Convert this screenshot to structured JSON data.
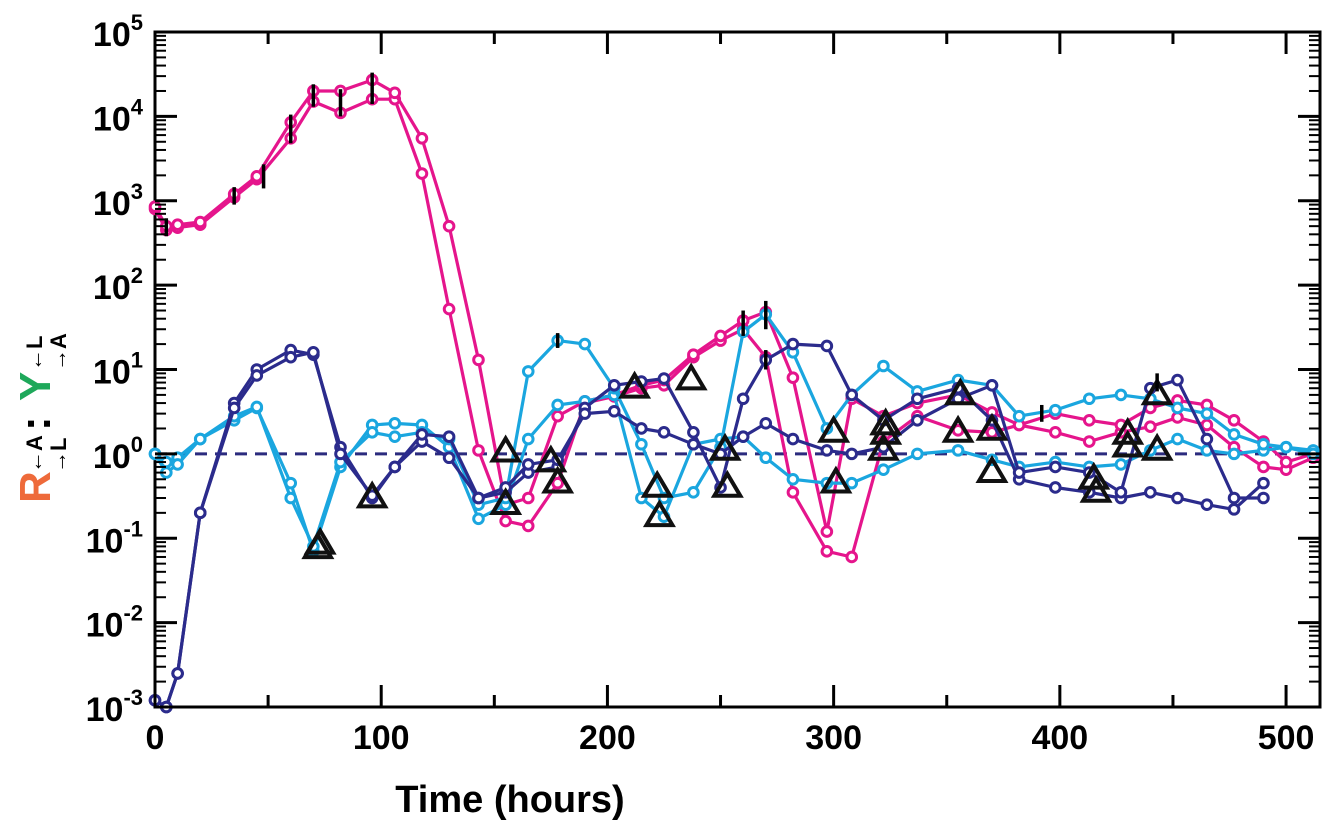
{
  "chart_data": {
    "type": "line",
    "xlabel": "Time (hours)",
    "ylabel": {
      "parts": [
        {
          "text": "R",
          "color": "#ee6a3a",
          "sub_top": "←A",
          "sub_bottom": "→L"
        },
        {
          "text": ":",
          "color": "#000000"
        },
        {
          "text": "Y",
          "color": "#1ea85a",
          "sub_top": "←L",
          "sub_bottom": "→A"
        }
      ]
    },
    "xlim": [
      0,
      515
    ],
    "ylim": [
      0.001,
      100000
    ],
    "yscale": "log",
    "xticks": [
      0,
      100,
      200,
      300,
      400,
      500
    ],
    "xtick_labels": [
      "0",
      "100",
      "200",
      "300",
      "400",
      "500"
    ],
    "yticks": [
      {
        "value": 0.001,
        "base": "10",
        "exp": "-3"
      },
      {
        "value": 0.01,
        "base": "10",
        "exp": "-2"
      },
      {
        "value": 0.1,
        "base": "10",
        "exp": "-1"
      },
      {
        "value": 1,
        "base": "10",
        "exp": "0"
      },
      {
        "value": 10,
        "base": "10",
        "exp": "1"
      },
      {
        "value": 100,
        "base": "10",
        "exp": "2"
      },
      {
        "value": 1000,
        "base": "10",
        "exp": "3"
      },
      {
        "value": 10000,
        "base": "10",
        "exp": "4"
      },
      {
        "value": 100000,
        "base": "10",
        "exp": "5"
      }
    ],
    "reference_line": {
      "y": 1,
      "style": "dashed",
      "color": "#2b2b7e"
    },
    "series": [
      {
        "color": "#e5158c",
        "x": [
          0,
          5,
          10,
          20,
          35,
          45,
          60,
          70,
          82,
          96,
          106,
          118,
          130,
          143,
          155,
          165,
          178,
          190,
          203,
          215,
          225,
          238,
          250,
          260,
          270,
          282,
          297,
          308,
          322,
          337,
          355,
          370,
          382,
          398,
          413,
          427,
          440,
          452,
          465,
          477,
          490,
          500,
          512
        ],
        "y": [
          800,
          450,
          480,
          520,
          1100,
          1800,
          5500,
          15000,
          11000,
          16000,
          16000,
          2100,
          52,
          1.1,
          0.16,
          0.14,
          0.45,
          4,
          4.8,
          6,
          6.5,
          14,
          22,
          30,
          14,
          0.35,
          0.07,
          0.06,
          1.4,
          2.8,
          1.9,
          1.8,
          2.2,
          1.8,
          1.4,
          1.8,
          2.1,
          2.7,
          2.2,
          1.2,
          0.7,
          0.65,
          0.9
        ]
      },
      {
        "color": "#e5158c",
        "x": [
          0,
          5,
          10,
          20,
          35,
          45,
          60,
          70,
          82,
          96,
          106,
          118,
          130,
          143,
          155,
          165,
          178,
          190,
          203,
          215,
          225,
          238,
          250,
          260,
          270,
          282,
          297,
          308,
          322,
          337,
          355,
          370,
          382,
          398,
          413,
          427,
          440,
          452,
          465,
          477,
          490,
          500,
          512
        ],
        "y": [
          850,
          500,
          520,
          560,
          1200,
          1950,
          8500,
          20000,
          20000,
          27000,
          19000,
          5500,
          500,
          13,
          0.25,
          0.3,
          2.8,
          4.2,
          5,
          6.5,
          7.5,
          15,
          25,
          38,
          48,
          8,
          0.12,
          4.5,
          2.8,
          4,
          5,
          3.1,
          2.2,
          3,
          2.5,
          2.2,
          3.5,
          4.3,
          3.8,
          2.5,
          1.4,
          0.8,
          1.0
        ]
      },
      {
        "color": "#1aa6df",
        "x": [
          0,
          5,
          10,
          20,
          35,
          45,
          60,
          70,
          82,
          96,
          106,
          118,
          130,
          143,
          155,
          165,
          178,
          190,
          203,
          215,
          225,
          238,
          250,
          260,
          270,
          282,
          297,
          308,
          322,
          337,
          355,
          370,
          382,
          398,
          413,
          427,
          440,
          452,
          465,
          477,
          490,
          500,
          512
        ],
        "y": [
          1,
          0.8,
          0.9,
          1.5,
          2.5,
          3.5,
          0.45,
          0.07,
          0.7,
          2.2,
          2.3,
          2.2,
          1.2,
          0.17,
          0.25,
          1.5,
          3.8,
          4.2,
          5,
          0.3,
          0.18,
          1.3,
          1.5,
          1.6,
          0.9,
          0.5,
          0.45,
          0.45,
          0.65,
          1,
          1.1,
          0.85,
          0.7,
          0.8,
          0.7,
          0.75,
          1.1,
          1.5,
          1.1,
          1.0,
          1.1,
          1.2,
          1.1
        ]
      },
      {
        "color": "#1aa6df",
        "x": [
          0,
          5,
          10,
          20,
          35,
          45,
          60,
          70,
          82,
          96,
          106,
          118,
          130,
          143,
          155,
          165,
          178,
          190,
          203,
          215,
          225,
          238,
          250,
          260,
          270,
          282,
          297,
          308,
          322,
          337,
          355,
          370,
          382,
          398,
          413,
          427,
          440,
          452,
          465,
          477,
          490,
          500,
          512
        ],
        "y": [
          1.0,
          0.6,
          0.75,
          1.5,
          2.8,
          3.6,
          0.3,
          0.08,
          0.8,
          1.8,
          1.6,
          1.8,
          1.5,
          0.25,
          0.3,
          9.5,
          22,
          20,
          6,
          1.3,
          0.3,
          0.35,
          1.2,
          28,
          45,
          16,
          2,
          5,
          11,
          5.5,
          7.5,
          6.5,
          2.8,
          3.3,
          4.5,
          5,
          4.5,
          3.5,
          3,
          1.7,
          1.3,
          1.2,
          1.0
        ]
      },
      {
        "color": "#2b2b8c",
        "x": [
          0,
          5,
          10,
          20,
          35,
          45,
          60,
          70,
          82,
          96,
          106,
          118,
          130,
          143,
          155,
          165,
          178,
          190,
          203,
          215,
          225,
          238,
          250,
          260,
          270,
          282,
          297,
          308,
          322,
          337,
          355,
          370,
          382,
          398,
          413,
          427,
          440,
          452,
          465,
          477,
          490
        ],
        "y": [
          0.0012,
          0.001,
          0.0025,
          0.2,
          4,
          10,
          17,
          15,
          1.2,
          0.3,
          0.7,
          1.4,
          0.9,
          0.3,
          0.35,
          0.6,
          0.7,
          3.5,
          6.5,
          7.2,
          7.8,
          1.8,
          0.4,
          4.5,
          13,
          20,
          19,
          5,
          2.5,
          4.5,
          6,
          2.5,
          0.5,
          0.4,
          0.35,
          0.3,
          0.35,
          0.3,
          0.25,
          0.22,
          0.45
        ]
      },
      {
        "color": "#2b2b8c",
        "x": [
          0,
          5,
          10,
          20,
          35,
          45,
          60,
          70,
          82,
          96,
          106,
          118,
          130,
          143,
          155,
          165,
          178,
          190,
          203,
          215,
          225,
          238,
          250,
          260,
          270,
          282,
          297,
          308,
          322,
          337,
          355,
          370,
          382,
          398,
          413,
          427,
          440,
          452,
          465,
          477,
          490
        ],
        "y": [
          0.0012,
          0.001,
          0.0025,
          0.2,
          3.5,
          8.5,
          14,
          16,
          1.0,
          0.32,
          0.7,
          1.7,
          1.6,
          0.3,
          0.4,
          0.75,
          0.85,
          3.0,
          3.2,
          2.0,
          1.8,
          1.3,
          1.0,
          1.6,
          2.3,
          1.5,
          1.1,
          1.0,
          1.2,
          2.5,
          4.5,
          6.5,
          0.6,
          0.7,
          0.6,
          0.35,
          6,
          7.5,
          1.5,
          0.3,
          0.3
        ]
      }
    ],
    "triangle_markers": [
      {
        "x": 72,
        "y": 0.075
      },
      {
        "x": 73,
        "y": 0.085
      },
      {
        "x": 96,
        "y": 0.3
      },
      {
        "x": 155,
        "y": 1.05
      },
      {
        "x": 155,
        "y": 0.25
      },
      {
        "x": 175,
        "y": 0.8
      },
      {
        "x": 178,
        "y": 0.45
      },
      {
        "x": 212,
        "y": 6
      },
      {
        "x": 222,
        "y": 0.4
      },
      {
        "x": 223,
        "y": 0.18
      },
      {
        "x": 237,
        "y": 7.5
      },
      {
        "x": 252,
        "y": 1.1
      },
      {
        "x": 253,
        "y": 0.4
      },
      {
        "x": 300,
        "y": 1.8
      },
      {
        "x": 301,
        "y": 0.45
      },
      {
        "x": 322,
        "y": 1.1
      },
      {
        "x": 323,
        "y": 1.7
      },
      {
        "x": 323,
        "y": 2.2
      },
      {
        "x": 355,
        "y": 1.8
      },
      {
        "x": 356,
        "y": 5
      },
      {
        "x": 370,
        "y": 1.9
      },
      {
        "x": 370,
        "y": 0.6
      },
      {
        "x": 415,
        "y": 0.5
      },
      {
        "x": 416,
        "y": 0.35
      },
      {
        "x": 430,
        "y": 1.2
      },
      {
        "x": 430,
        "y": 1.7
      },
      {
        "x": 443,
        "y": 1.1
      },
      {
        "x": 443,
        "y": 5
      }
    ],
    "error_bars": [
      {
        "x": 5,
        "y": 480,
        "lo": 380,
        "hi": 620
      },
      {
        "x": 35,
        "y": 1150,
        "lo": 900,
        "hi": 1450
      },
      {
        "x": 48,
        "y": 1900,
        "lo": 1400,
        "hi": 2700
      },
      {
        "x": 60,
        "y": 7000,
        "lo": 4800,
        "hi": 10500
      },
      {
        "x": 70,
        "y": 18000,
        "lo": 13000,
        "hi": 24000
      },
      {
        "x": 82,
        "y": 15000,
        "lo": 10000,
        "hi": 21000
      },
      {
        "x": 96,
        "y": 22000,
        "lo": 14000,
        "hi": 33000
      },
      {
        "x": 178,
        "y": 22,
        "lo": 18,
        "hi": 27
      },
      {
        "x": 260,
        "y": 35,
        "lo": 25,
        "hi": 50
      },
      {
        "x": 270,
        "y": 45,
        "lo": 30,
        "hi": 65
      },
      {
        "x": 270,
        "y": 13,
        "lo": 10,
        "hi": 17
      },
      {
        "x": 392,
        "y": 3,
        "lo": 2.4,
        "hi": 3.8
      },
      {
        "x": 443,
        "y": 7,
        "lo": 5.5,
        "hi": 9
      }
    ],
    "grid": false,
    "legend": "none"
  }
}
